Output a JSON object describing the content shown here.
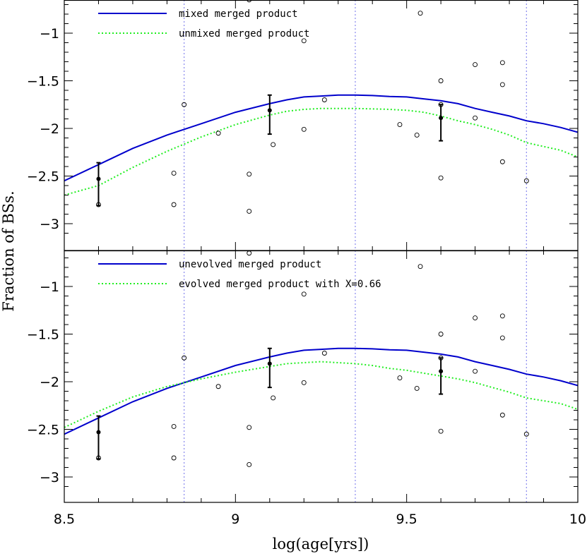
{
  "chart_data": {
    "type": "line",
    "xlabel": "log(age[yrs])",
    "ylabel": "Fraction of BSs.",
    "xlim": [
      8.5,
      10
    ],
    "x_ticks": [
      8.5,
      9,
      9.5,
      10
    ],
    "x_tick_labels": [
      "8.5",
      "9",
      "9.5",
      "10"
    ],
    "y_ticks": [
      -1,
      -1.5,
      -2,
      -2.5,
      -3
    ],
    "y_tick_labels": [
      "−1",
      "−1.5",
      "−2",
      "−2.5",
      "−3"
    ],
    "vertical_reference_lines": [
      8.85,
      9.35,
      9.85
    ],
    "panels": [
      {
        "ylim": [
          -3.2,
          -0.6
        ],
        "series": [
          {
            "name": "mixed merged product",
            "style": "solid",
            "color": "#0000cc",
            "x": [
              8.5,
              8.6,
              8.7,
              8.8,
              8.9,
              9.0,
              9.1,
              9.15,
              9.2,
              9.25,
              9.3,
              9.35,
              9.4,
              9.45,
              9.5,
              9.55,
              9.6,
              9.65,
              9.7,
              9.75,
              9.8,
              9.85,
              9.9,
              9.95,
              10.0
            ],
            "y": [
              -2.55,
              -2.38,
              -2.21,
              -2.07,
              -1.95,
              -1.83,
              -1.74,
              -1.7,
              -1.67,
              -1.66,
              -1.65,
              -1.65,
              -1.655,
              -1.665,
              -1.67,
              -1.69,
              -1.71,
              -1.74,
              -1.79,
              -1.83,
              -1.87,
              -1.92,
              -1.95,
              -1.99,
              -2.04
            ]
          },
          {
            "name": "unmixed merged product",
            "style": "dotted",
            "color": "#22ee22",
            "x": [
              8.5,
              8.6,
              8.7,
              8.8,
              8.9,
              9.0,
              9.1,
              9.15,
              9.2,
              9.25,
              9.3,
              9.35,
              9.4,
              9.45,
              9.5,
              9.55,
              9.6,
              9.65,
              9.7,
              9.75,
              9.8,
              9.85,
              9.9,
              9.95,
              10.0
            ],
            "y": [
              -2.7,
              -2.6,
              -2.41,
              -2.24,
              -2.09,
              -1.96,
              -1.86,
              -1.82,
              -1.8,
              -1.79,
              -1.79,
              -1.79,
              -1.795,
              -1.8,
              -1.81,
              -1.83,
              -1.87,
              -1.92,
              -1.96,
              -2.01,
              -2.07,
              -2.15,
              -2.19,
              -2.23,
              -2.3
            ]
          }
        ],
        "observations": [
          {
            "x": 8.6,
            "y": -2.53,
            "err_low": 0.28,
            "err_high": 0.17
          },
          {
            "x": 9.1,
            "y": -1.81,
            "err_low": 0.25,
            "err_high": 0.16
          },
          {
            "x": 9.6,
            "y": -1.89,
            "err_low": 0.24,
            "err_high": 0.14
          }
        ],
        "open_points": [
          {
            "x": 8.6,
            "y": -2.8
          },
          {
            "x": 8.82,
            "y": -2.47
          },
          {
            "x": 8.82,
            "y": -2.8
          },
          {
            "x": 8.85,
            "y": -1.75
          },
          {
            "x": 8.95,
            "y": -2.05
          },
          {
            "x": 9.04,
            "y": -2.48
          },
          {
            "x": 9.04,
            "y": -2.87
          },
          {
            "x": 9.11,
            "y": -2.17
          },
          {
            "x": 9.2,
            "y": -1.08
          },
          {
            "x": 9.2,
            "y": -2.01
          },
          {
            "x": 9.26,
            "y": -1.7
          },
          {
            "x": 9.48,
            "y": -1.96
          },
          {
            "x": 9.53,
            "y": -2.07
          },
          {
            "x": 9.54,
            "y": -0.79
          },
          {
            "x": 9.6,
            "y": -1.5
          },
          {
            "x": 9.6,
            "y": -2.52
          },
          {
            "x": 9.6,
            "y": -1.75
          },
          {
            "x": 9.7,
            "y": -1.33
          },
          {
            "x": 9.7,
            "y": -1.89
          },
          {
            "x": 9.78,
            "y": -1.31
          },
          {
            "x": 9.78,
            "y": -1.54
          },
          {
            "x": 9.78,
            "y": -2.35
          },
          {
            "x": 9.85,
            "y": -2.55
          },
          {
            "x": 9.04,
            "y": -0.65
          }
        ]
      },
      {
        "ylim": [
          -3.2,
          -0.6
        ],
        "series": [
          {
            "name": "unevolved merged product",
            "style": "solid",
            "color": "#0000cc",
            "x": [
              8.5,
              8.6,
              8.7,
              8.8,
              8.9,
              9.0,
              9.1,
              9.15,
              9.2,
              9.25,
              9.3,
              9.35,
              9.4,
              9.45,
              9.5,
              9.55,
              9.6,
              9.65,
              9.7,
              9.75,
              9.8,
              9.85,
              9.9,
              9.95,
              10.0
            ],
            "y": [
              -2.55,
              -2.38,
              -2.21,
              -2.07,
              -1.95,
              -1.83,
              -1.74,
              -1.7,
              -1.67,
              -1.66,
              -1.65,
              -1.65,
              -1.655,
              -1.665,
              -1.67,
              -1.69,
              -1.71,
              -1.74,
              -1.79,
              -1.83,
              -1.87,
              -1.92,
              -1.95,
              -1.99,
              -2.04
            ]
          },
          {
            "name": "evolved merged product with X=0.66",
            "style": "dotted",
            "color": "#22ee22",
            "x": [
              8.5,
              8.6,
              8.7,
              8.8,
              8.9,
              9.0,
              9.1,
              9.15,
              9.2,
              9.25,
              9.3,
              9.35,
              9.4,
              9.45,
              9.5,
              9.55,
              9.6,
              9.65,
              9.7,
              9.75,
              9.8,
              9.85,
              9.9,
              9.95,
              10.0
            ],
            "y": [
              -2.48,
              -2.31,
              -2.16,
              -2.05,
              -1.97,
              -1.9,
              -1.84,
              -1.81,
              -1.8,
              -1.79,
              -1.8,
              -1.81,
              -1.83,
              -1.86,
              -1.88,
              -1.91,
              -1.94,
              -1.97,
              -2.01,
              -2.06,
              -2.11,
              -2.17,
              -2.2,
              -2.23,
              -2.29
            ]
          }
        ],
        "observations": [
          {
            "x": 8.6,
            "y": -2.53,
            "err_low": 0.28,
            "err_high": 0.17
          },
          {
            "x": 9.1,
            "y": -1.81,
            "err_low": 0.25,
            "err_high": 0.16
          },
          {
            "x": 9.6,
            "y": -1.89,
            "err_low": 0.24,
            "err_high": 0.14
          }
        ],
        "open_points": [
          {
            "x": 8.6,
            "y": -2.8
          },
          {
            "x": 8.82,
            "y": -2.47
          },
          {
            "x": 8.82,
            "y": -2.8
          },
          {
            "x": 8.85,
            "y": -1.75
          },
          {
            "x": 8.95,
            "y": -2.05
          },
          {
            "x": 9.04,
            "y": -2.48
          },
          {
            "x": 9.04,
            "y": -2.87
          },
          {
            "x": 9.11,
            "y": -2.17
          },
          {
            "x": 9.2,
            "y": -1.08
          },
          {
            "x": 9.2,
            "y": -2.01
          },
          {
            "x": 9.26,
            "y": -1.7
          },
          {
            "x": 9.48,
            "y": -1.96
          },
          {
            "x": 9.53,
            "y": -2.07
          },
          {
            "x": 9.54,
            "y": -0.79
          },
          {
            "x": 9.6,
            "y": -1.5
          },
          {
            "x": 9.6,
            "y": -2.52
          },
          {
            "x": 9.6,
            "y": -1.75
          },
          {
            "x": 9.7,
            "y": -1.33
          },
          {
            "x": 9.7,
            "y": -1.89
          },
          {
            "x": 9.78,
            "y": -1.31
          },
          {
            "x": 9.78,
            "y": -1.54
          },
          {
            "x": 9.78,
            "y": -2.35
          },
          {
            "x": 9.85,
            "y": -2.55
          },
          {
            "x": 9.04,
            "y": -0.65
          }
        ]
      }
    ]
  }
}
